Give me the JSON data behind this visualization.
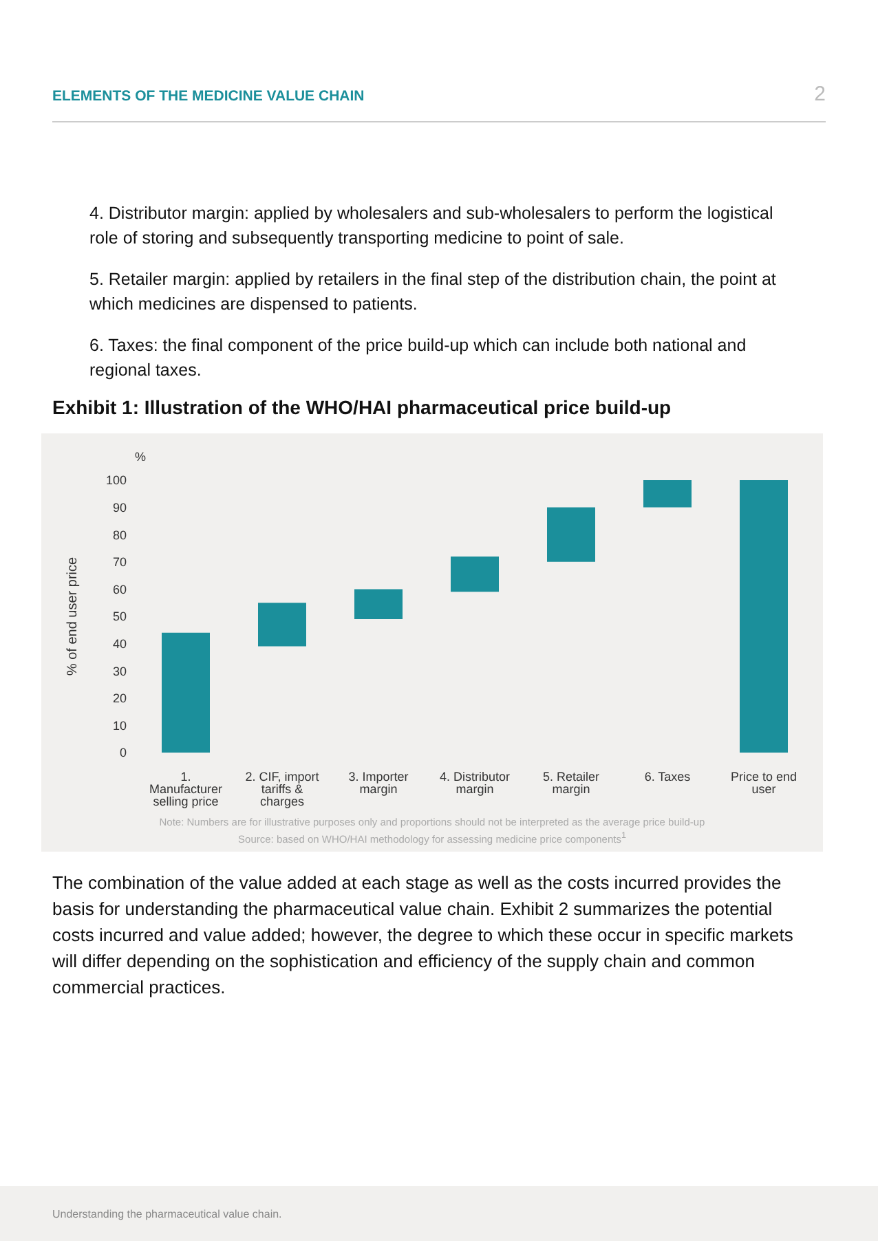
{
  "chart_data": {
    "type": "bar",
    "title": "Exhibit 1: Illustration of the WHO/HAI pharmaceutical price build-up",
    "ylabel": "% of end user price",
    "categories": [
      "1. Manufacturer selling price",
      "2. CIF, import tariffs & charges",
      "3. Importer margin",
      "4. Distributor margin",
      "5. Retailer margin",
      "6. Taxes",
      "Price to end user"
    ],
    "values": [
      44,
      16,
      11,
      13,
      20,
      10,
      100
    ],
    "base": [
      0,
      39,
      49,
      59,
      70,
      90,
      0
    ],
    "color": "#1b8f9b",
    "ylim": [
      0,
      100
    ],
    "yticks": [
      0,
      10,
      20,
      30,
      40,
      50,
      60,
      70,
      80,
      90,
      100
    ],
    "grid": false,
    "legend": false,
    "annotations": [
      "ELEMENTS OF THE MEDICINE VALUE CHAIN",
      "2",
      "4. Distributor margin: applied by wholesalers and sub-wholesalers to perform the logistical role of storing and subsequently transporting medicine to point of sale.",
      "5. Retailer margin: applied by retailers in the final step of the distribution chain, the point at which medicines are dispensed to patients.",
      "6. Taxes: the final component of the price build-up which can include both national and regional taxes.",
      "%",
      "Note: Numbers are for illustrative purposes only and proportions should not be interpreted as the average price build-up",
      "Source: based on WHO/HAI methodology for assessing medicine price components$^{1}$",
      "The combination of the value added at each stage as well as the costs incurred provides the basis for understanding the pharmaceutical value chain. Exhibit 2 summarizes the potential costs incurred and value added; however, the degree to which these occur in specific markets will differ depending on the sophistication and efficiency of the supply chain and common commercial practices.",
      "Understanding the pharmaceutical value chain."
    ]
  }
}
